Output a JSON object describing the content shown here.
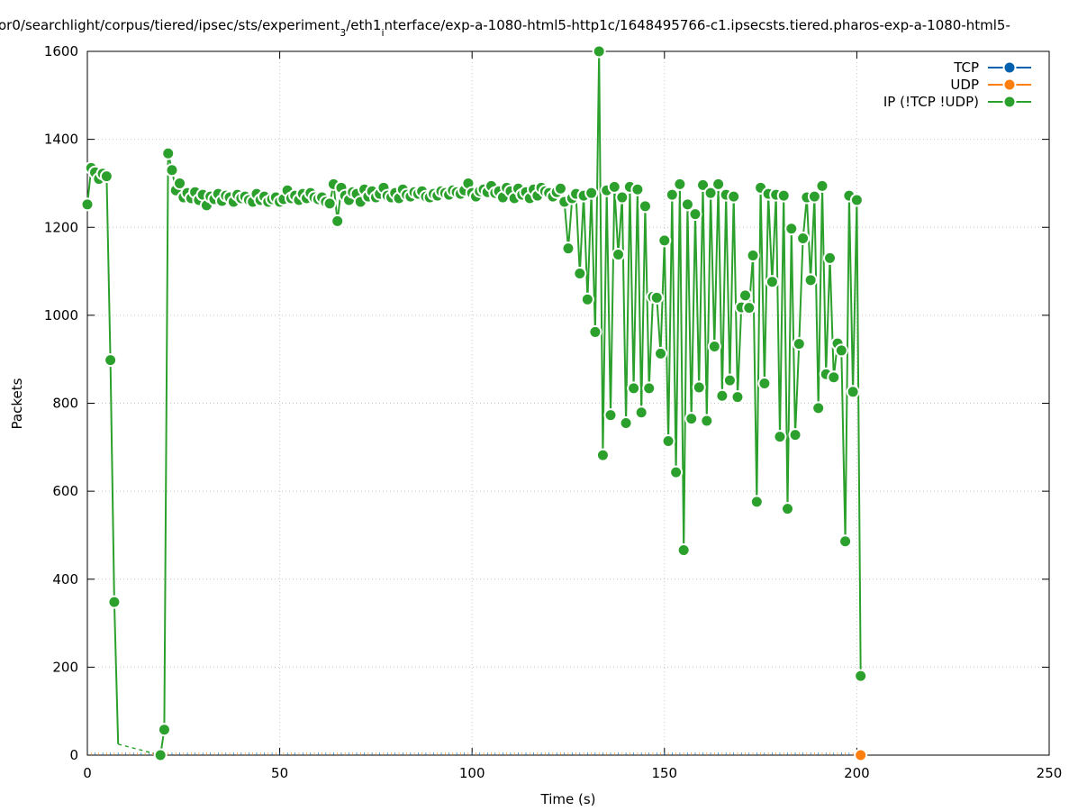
{
  "chart_data": {
    "type": "line",
    "title_parts": {
      "pre": "or0/searchlight/corpus/tiered/ipsec/sts/experiment",
      "sub1": "3",
      "mid": "/eth1",
      "sub2": "i",
      "post": "nterface/exp-a-1080-html5-http1c/1648495766-c1.ipsecsts.tiered.pharos-exp-a-1080-html5-"
    },
    "xlabel": "Time (s)",
    "ylabel": "Packets",
    "xlim": [
      0,
      250
    ],
    "ylim": [
      0,
      1600
    ],
    "xticks": [
      0,
      50,
      100,
      150,
      200,
      250
    ],
    "yticks": [
      0,
      200,
      400,
      600,
      800,
      1000,
      1200,
      1400,
      1600
    ],
    "grid": true,
    "legend_placement": "top-right",
    "series": [
      {
        "name": "TCP",
        "color": "#0060ad",
        "x": [
          0,
          201
        ],
        "values": [
          0,
          0
        ],
        "markers": []
      },
      {
        "name": "UDP",
        "color": "#ff7f0e",
        "x": [
          0,
          201
        ],
        "values": [
          0,
          0
        ],
        "markers": [
          [
            201,
            0
          ]
        ]
      },
      {
        "name": "IP (!TCP  !UDP)",
        "color": "#2ca02c",
        "points": [
          [
            0,
            1252
          ],
          [
            1,
            1335
          ],
          [
            2,
            1325
          ],
          [
            3,
            1310
          ],
          [
            4,
            1322
          ],
          [
            5,
            1316
          ],
          [
            6,
            898
          ],
          [
            7,
            348
          ],
          [
            8,
            25
          ],
          [
            19,
            0
          ],
          [
            20,
            58
          ],
          [
            21,
            1368
          ],
          [
            22,
            1330
          ],
          [
            23,
            1284
          ],
          [
            24,
            1300
          ],
          [
            25,
            1268
          ],
          [
            26,
            1278
          ],
          [
            27,
            1266
          ],
          [
            28,
            1280
          ],
          [
            29,
            1262
          ],
          [
            30,
            1274
          ],
          [
            31,
            1250
          ],
          [
            32,
            1270
          ],
          [
            33,
            1264
          ],
          [
            34,
            1276
          ],
          [
            35,
            1260
          ],
          [
            36,
            1272
          ],
          [
            37,
            1268
          ],
          [
            38,
            1258
          ],
          [
            39,
            1274
          ],
          [
            40,
            1266
          ],
          [
            41,
            1270
          ],
          [
            42,
            1262
          ],
          [
            43,
            1258
          ],
          [
            44,
            1276
          ],
          [
            45,
            1262
          ],
          [
            46,
            1270
          ],
          [
            47,
            1258
          ],
          [
            48,
            1264
          ],
          [
            49,
            1268
          ],
          [
            50,
            1258
          ],
          [
            51,
            1264
          ],
          [
            52,
            1284
          ],
          [
            53,
            1266
          ],
          [
            54,
            1272
          ],
          [
            55,
            1262
          ],
          [
            56,
            1276
          ],
          [
            57,
            1266
          ],
          [
            58,
            1278
          ],
          [
            59,
            1268
          ],
          [
            60,
            1264
          ],
          [
            61,
            1268
          ],
          [
            62,
            1258
          ],
          [
            63,
            1254
          ],
          [
            64,
            1298
          ],
          [
            65,
            1214
          ],
          [
            66,
            1290
          ],
          [
            67,
            1272
          ],
          [
            68,
            1262
          ],
          [
            69,
            1280
          ],
          [
            70,
            1276
          ],
          [
            71,
            1258
          ],
          [
            72,
            1286
          ],
          [
            73,
            1270
          ],
          [
            74,
            1282
          ],
          [
            75,
            1268
          ],
          [
            76,
            1276
          ],
          [
            77,
            1290
          ],
          [
            78,
            1272
          ],
          [
            79,
            1268
          ],
          [
            80,
            1278
          ],
          [
            81,
            1266
          ],
          [
            82,
            1286
          ],
          [
            83,
            1274
          ],
          [
            84,
            1270
          ],
          [
            85,
            1280
          ],
          [
            86,
            1276
          ],
          [
            87,
            1282
          ],
          [
            88,
            1270
          ],
          [
            89,
            1268
          ],
          [
            90,
            1276
          ],
          [
            91,
            1272
          ],
          [
            92,
            1282
          ],
          [
            93,
            1278
          ],
          [
            94,
            1274
          ],
          [
            95,
            1284
          ],
          [
            96,
            1280
          ],
          [
            97,
            1276
          ],
          [
            98,
            1284
          ],
          [
            99,
            1300
          ],
          [
            100,
            1278
          ],
          [
            101,
            1270
          ],
          [
            102,
            1282
          ],
          [
            103,
            1286
          ],
          [
            104,
            1280
          ],
          [
            105,
            1294
          ],
          [
            106,
            1278
          ],
          [
            107,
            1282
          ],
          [
            108,
            1268
          ],
          [
            109,
            1290
          ],
          [
            110,
            1282
          ],
          [
            111,
            1266
          ],
          [
            112,
            1288
          ],
          [
            113,
            1274
          ],
          [
            114,
            1280
          ],
          [
            115,
            1266
          ],
          [
            116,
            1286
          ],
          [
            117,
            1272
          ],
          [
            118,
            1290
          ],
          [
            119,
            1282
          ],
          [
            120,
            1278
          ],
          [
            121,
            1270
          ],
          [
            122,
            1280
          ],
          [
            123,
            1288
          ],
          [
            124,
            1258
          ],
          [
            125,
            1152
          ],
          [
            126,
            1266
          ],
          [
            127,
            1276
          ],
          [
            128,
            1095
          ],
          [
            129,
            1272
          ],
          [
            130,
            1036
          ],
          [
            131,
            1278
          ],
          [
            132,
            962
          ],
          [
            133,
            1600
          ],
          [
            134,
            682
          ],
          [
            135,
            1284
          ],
          [
            136,
            773
          ],
          [
            137,
            1292
          ],
          [
            138,
            1138
          ],
          [
            139,
            1268
          ],
          [
            140,
            755
          ],
          [
            141,
            1292
          ],
          [
            142,
            834
          ],
          [
            143,
            1286
          ],
          [
            144,
            779
          ],
          [
            145,
            1248
          ],
          [
            146,
            834
          ],
          [
            147,
            1042
          ],
          [
            148,
            1040
          ],
          [
            149,
            913
          ],
          [
            150,
            1170
          ],
          [
            151,
            714
          ],
          [
            152,
            1274
          ],
          [
            153,
            643
          ],
          [
            154,
            1298
          ],
          [
            155,
            466
          ],
          [
            156,
            1252
          ],
          [
            157,
            765
          ],
          [
            158,
            1230
          ],
          [
            159,
            836
          ],
          [
            160,
            1296
          ],
          [
            161,
            760
          ],
          [
            162,
            1278
          ],
          [
            163,
            929
          ],
          [
            164,
            1298
          ],
          [
            165,
            817
          ],
          [
            166,
            1274
          ],
          [
            167,
            852
          ],
          [
            168,
            1270
          ],
          [
            169,
            814
          ],
          [
            170,
            1018
          ],
          [
            171,
            1045
          ],
          [
            172,
            1017
          ],
          [
            173,
            1136
          ],
          [
            174,
            576
          ],
          [
            175,
            1290
          ],
          [
            176,
            845
          ],
          [
            177,
            1276
          ],
          [
            178,
            1076
          ],
          [
            179,
            1274
          ],
          [
            180,
            724
          ],
          [
            181,
            1272
          ],
          [
            182,
            560
          ],
          [
            183,
            1197
          ],
          [
            184,
            728
          ],
          [
            185,
            935
          ],
          [
            186,
            1175
          ],
          [
            187,
            1268
          ],
          [
            188,
            1080
          ],
          [
            189,
            1270
          ],
          [
            190,
            789
          ],
          [
            191,
            1294
          ],
          [
            192,
            866
          ],
          [
            193,
            1130
          ],
          [
            194,
            859
          ],
          [
            195,
            936
          ],
          [
            196,
            920
          ],
          [
            197,
            486
          ],
          [
            198,
            1272
          ],
          [
            199,
            826
          ],
          [
            200,
            1262
          ],
          [
            201,
            180
          ]
        ]
      }
    ]
  }
}
